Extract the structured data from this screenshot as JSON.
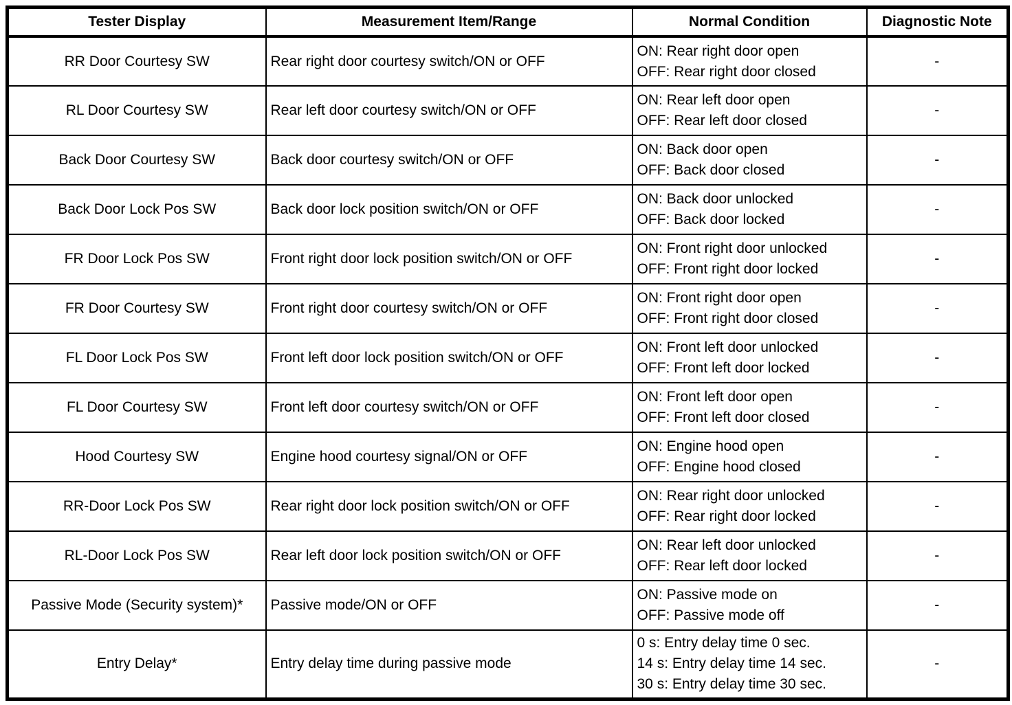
{
  "table": {
    "headers": {
      "tester": "Tester Display",
      "measurement": "Measurement Item/Range",
      "condition": "Normal Condition",
      "note": "Diagnostic Note"
    },
    "rows": [
      {
        "tester": "RR Door Courtesy SW",
        "measurement": "Rear right door courtesy switch/ON or OFF",
        "condition": "ON: Rear right door open\nOFF: Rear right door closed",
        "note": "-"
      },
      {
        "tester": "RL Door Courtesy SW",
        "measurement": "Rear left door courtesy switch/ON or OFF",
        "condition": "ON: Rear left door open\nOFF: Rear left door closed",
        "note": "-"
      },
      {
        "tester": "Back Door Courtesy SW",
        "measurement": "Back door courtesy switch/ON or OFF",
        "condition": "ON: Back door open\nOFF: Back door closed",
        "note": "-"
      },
      {
        "tester": "Back Door Lock Pos SW",
        "measurement": "Back door lock position switch/ON or OFF",
        "condition": "ON: Back door unlocked\nOFF: Back door locked",
        "note": "-"
      },
      {
        "tester": "FR Door Lock Pos SW",
        "measurement": "Front right door lock position switch/ON or OFF",
        "condition": "ON: Front right door unlocked\nOFF: Front right door locked",
        "note": "-"
      },
      {
        "tester": "FR Door Courtesy SW",
        "measurement": "Front right door courtesy switch/ON or OFF",
        "condition": "ON: Front right door open\nOFF: Front right door closed",
        "note": "-"
      },
      {
        "tester": "FL Door Lock Pos SW",
        "measurement": "Front left door lock position switch/ON or OFF",
        "condition": "ON: Front left door unlocked\nOFF: Front left door locked",
        "note": "-"
      },
      {
        "tester": "FL Door Courtesy SW",
        "measurement": "Front left door courtesy switch/ON or OFF",
        "condition": "ON: Front left door open\nOFF: Front left door closed",
        "note": "-"
      },
      {
        "tester": "Hood Courtesy SW",
        "measurement": "Engine hood courtesy signal/ON or OFF",
        "condition": "ON: Engine hood open\nOFF: Engine hood closed",
        "note": "-"
      },
      {
        "tester": "RR-Door Lock Pos SW",
        "measurement": "Rear right door lock position switch/ON or OFF",
        "condition": "ON: Rear right door unlocked\nOFF: Rear right door locked",
        "note": "-"
      },
      {
        "tester": "RL-Door Lock Pos SW",
        "measurement": "Rear left door lock position switch/ON or OFF",
        "condition": "ON: Rear left door unlocked\nOFF: Rear left door locked",
        "note": "-"
      },
      {
        "tester": "Passive Mode (Security system)*",
        "measurement": "Passive mode/ON or OFF",
        "condition": "ON: Passive mode on\nOFF: Passive mode off",
        "note": "-"
      },
      {
        "tester": "Entry Delay*",
        "measurement": "Entry delay time during passive mode",
        "condition": "0 s: Entry delay time 0 sec.\n14 s: Entry delay time 14 sec.\n30 s: Entry delay time 30 sec.",
        "note": "-"
      }
    ]
  }
}
